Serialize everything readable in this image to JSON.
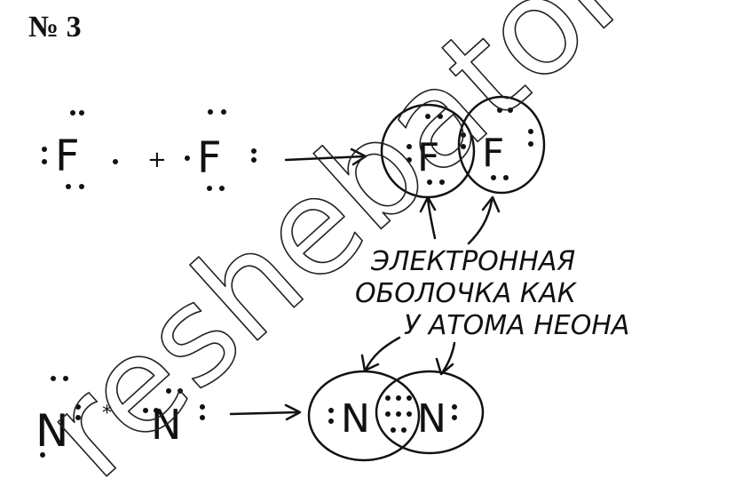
{
  "header": {
    "task_number": "№ 3"
  },
  "fluorine": {
    "atom_left": "F",
    "plus": "+",
    "atom_right": "F",
    "molecule_left": "F",
    "molecule_right": "F"
  },
  "annotation": {
    "line1": "ЭЛЕКТРОННАЯ",
    "line2": "ОБОЛОЧКА КАК",
    "line3": "У АТОМА НЕОНА"
  },
  "nitrogen": {
    "atom_left": "N",
    "atom_right": "N",
    "molecule_left": "N",
    "molecule_right": "N"
  },
  "watermark": {
    "text": "reshebator"
  },
  "colors": {
    "ink": "#111111",
    "background": "#ffffff"
  }
}
